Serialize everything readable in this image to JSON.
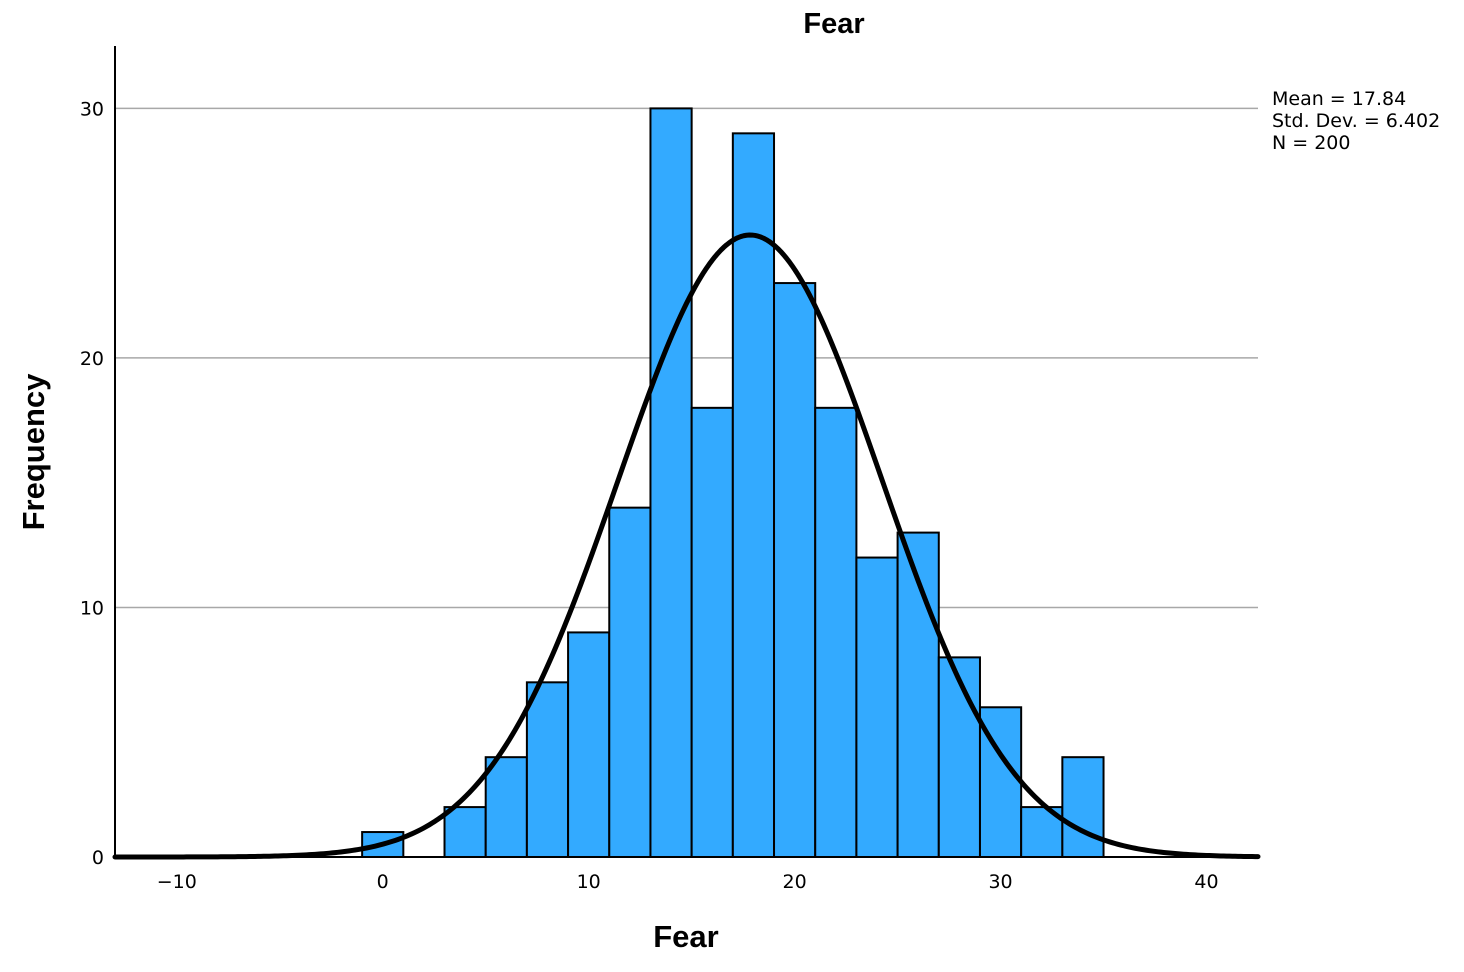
{
  "chart_data": {
    "type": "bar",
    "subtype": "histogram",
    "title": "Fear",
    "xlabel": "Fear",
    "ylabel": "Frequency",
    "xlim": [
      -13,
      42.5
    ],
    "ylim": [
      0,
      32.5
    ],
    "xticks": [
      -10,
      0,
      10,
      20,
      30,
      40
    ],
    "yticks": [
      0,
      10,
      20,
      30
    ],
    "y_gridlines": true,
    "bar_color": "#33aaff",
    "bar_edge_color": "#000000",
    "curve_color": "#000000",
    "bins": [
      {
        "x0": -1,
        "x1": 1,
        "count": 1
      },
      {
        "x0": 3,
        "x1": 5,
        "count": 2
      },
      {
        "x0": 5,
        "x1": 7,
        "count": 4
      },
      {
        "x0": 7,
        "x1": 9,
        "count": 7
      },
      {
        "x0": 9,
        "x1": 11,
        "count": 9
      },
      {
        "x0": 11,
        "x1": 13,
        "count": 14
      },
      {
        "x0": 13,
        "x1": 15,
        "count": 30
      },
      {
        "x0": 15,
        "x1": 17,
        "count": 18
      },
      {
        "x0": 17,
        "x1": 19,
        "count": 29
      },
      {
        "x0": 19,
        "x1": 21,
        "count": 23
      },
      {
        "x0": 21,
        "x1": 23,
        "count": 18
      },
      {
        "x0": 23,
        "x1": 25,
        "count": 12
      },
      {
        "x0": 25,
        "x1": 27,
        "count": 13
      },
      {
        "x0": 27,
        "x1": 29,
        "count": 8
      },
      {
        "x0": 29,
        "x1": 31,
        "count": 6
      },
      {
        "x0": 31,
        "x1": 33,
        "count": 2
      },
      {
        "x0": 33,
        "x1": 35,
        "count": 4
      }
    ],
    "normal_curve": {
      "mean": 17.84,
      "sd": 6.402,
      "n": 200,
      "bin_width": 2
    },
    "stats_lines": [
      "Mean = 17.84",
      "Std. Dev. = 6.402",
      "N = 200"
    ],
    "legend_position": "top-right"
  }
}
